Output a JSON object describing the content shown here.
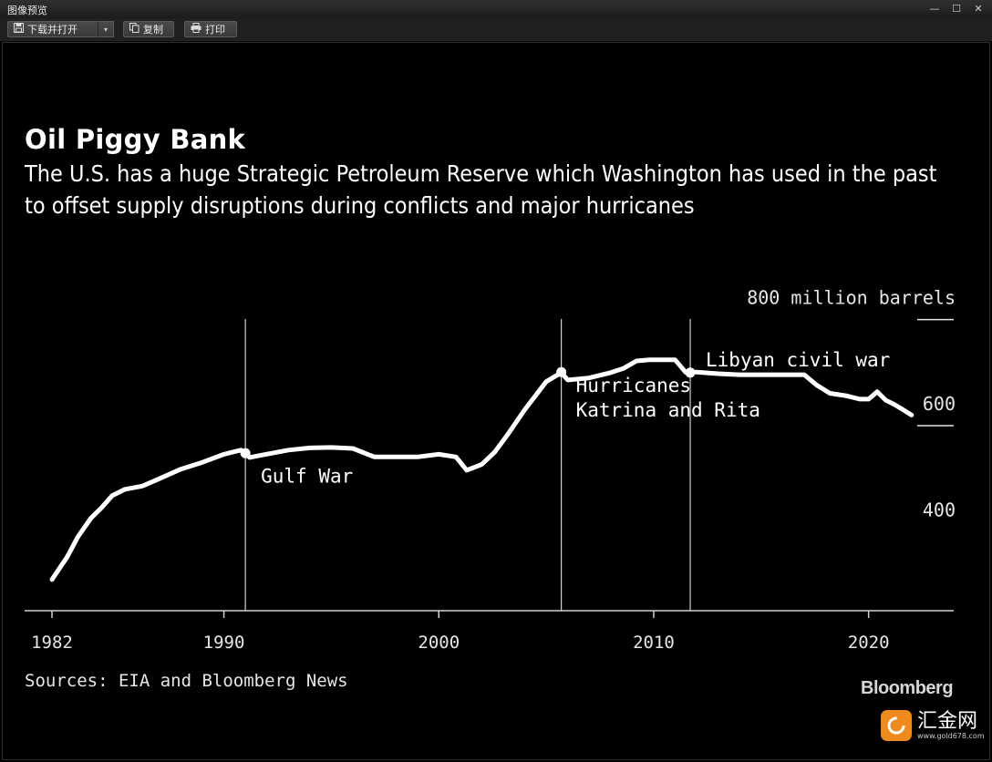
{
  "window": {
    "title": "图像预览",
    "controls": {
      "minimize": "—",
      "maximize": "☐",
      "close": "✕"
    }
  },
  "toolbar": {
    "download_open_label": "下载并打开",
    "copy_label": "复制",
    "print_label": "打印",
    "dropdown_glyph": "▾"
  },
  "article": {
    "title": "Oil Piggy Bank",
    "subtitle": "The U.S. has a huge Strategic Petroleum Reserve which Washington has used in the past to offset supply disruptions during conflicts and major hurricanes",
    "source": "Sources: EIA and Bloomberg News",
    "brand": "Bloomberg"
  },
  "watermark": {
    "name": "汇金网",
    "url": "www.gold678.com"
  },
  "colors": {
    "background": "#000000",
    "line": "#ffffff",
    "accent_logo": "#f08a1c"
  },
  "chart_data": {
    "type": "line",
    "title": "Oil Piggy Bank",
    "ylabel": "800 million barrels",
    "y_unit": "million barrels",
    "xlim": [
      1982,
      2024
    ],
    "ylim": [
      300,
      800
    ],
    "x_ticks": [
      {
        "value": 1982,
        "label": "1982"
      },
      {
        "value": 1990,
        "label": "1990"
      },
      {
        "value": 2000,
        "label": "2000"
      },
      {
        "value": 2010,
        "label": "2010"
      },
      {
        "value": 2020,
        "label": "2020"
      }
    ],
    "y_ticks": [
      {
        "value": 800,
        "label": "800 million barrels"
      },
      {
        "value": 600,
        "label": "600"
      },
      {
        "value": 400,
        "label": "400"
      }
    ],
    "series": [
      {
        "x": [
          1982.0,
          1982.7,
          1983.2,
          1983.8,
          1984.3,
          1984.8,
          1985.4,
          1986.2,
          1987.0,
          1988.0,
          1989.0,
          1990.0,
          1990.8,
          1991.2,
          1991.7,
          1993.0,
          1994.0,
          1995.0,
          1996.0,
          1997.0,
          1998.0,
          1999.0,
          2000.0,
          2000.8,
          2001.3,
          2002.0,
          2002.6,
          2003.2,
          2004.0,
          2005.0,
          2005.7,
          2006.0,
          2007.0,
          2008.0,
          2008.6,
          2009.2,
          2009.8,
          2010.4,
          2011.0,
          2011.5,
          2012.0,
          2013.0,
          2014.0,
          2015.0,
          2016.0,
          2017.0,
          2017.6,
          2018.2,
          2019.0,
          2019.6,
          2020.0,
          2020.4,
          2020.8,
          2021.2,
          2021.6,
          2022.0
        ],
        "y": [
          310,
          352,
          390,
          425,
          445,
          468,
          480,
          486,
          500,
          518,
          531,
          546,
          554,
          540,
          544,
          554,
          558,
          559,
          557,
          541,
          541,
          541,
          546,
          541,
          516,
          527,
          550,
          583,
          630,
          683,
          700,
          686,
          690,
          700,
          708,
          722,
          724,
          724,
          724,
          700,
          701,
          698,
          696,
          696,
          696,
          696,
          676,
          661,
          656,
          650,
          650,
          664,
          648,
          640,
          630,
          620
        ]
      }
    ],
    "annotations": [
      {
        "x": 1991.0,
        "y": 548,
        "label": "Gulf War"
      },
      {
        "x": 2005.7,
        "y": 701,
        "label": "Hurricanes",
        "label2": "Katrina and Rita"
      },
      {
        "x": 2011.7,
        "y": 700,
        "label": "Libyan civil war"
      }
    ],
    "grid": false,
    "legend": "none"
  }
}
